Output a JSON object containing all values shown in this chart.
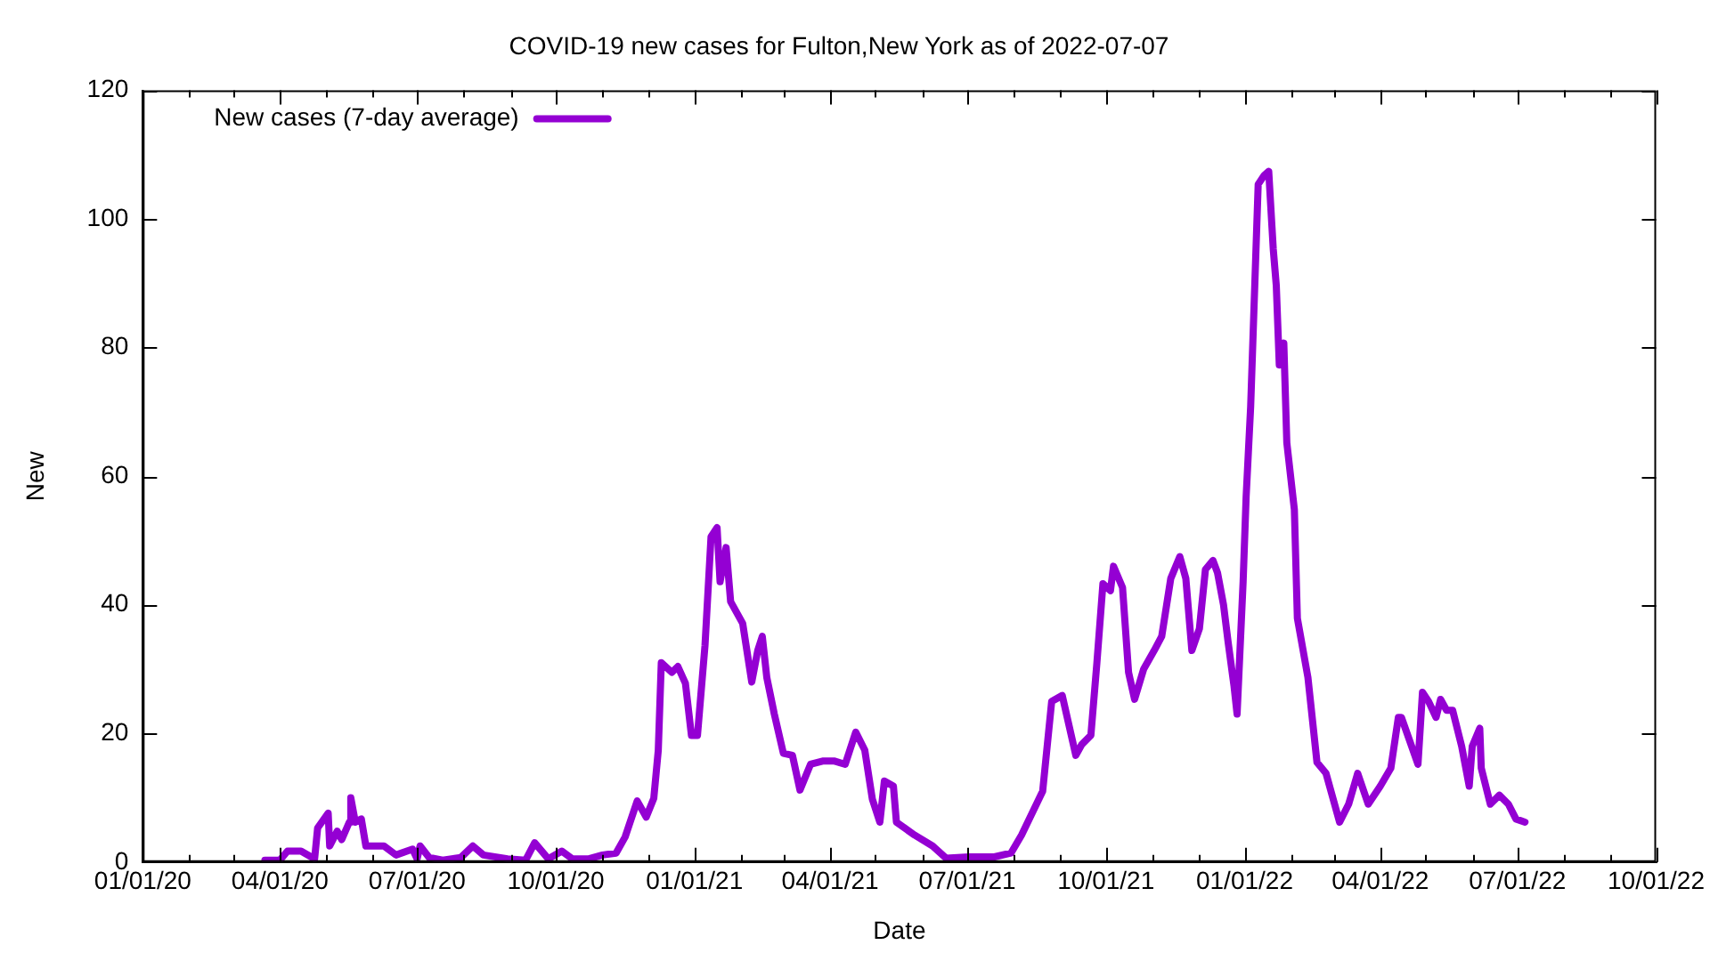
{
  "chart_data": {
    "type": "line",
    "title": "COVID-19 new cases for Fulton,New York as of 2022-07-07",
    "xlabel": "Date",
    "ylabel": "New",
    "x": [
      "2020-03-22",
      "2020-04-01",
      "2020-04-06",
      "2020-04-15",
      "2020-04-24",
      "2020-04-26",
      "2020-05-03",
      "2020-05-04",
      "2020-05-09",
      "2020-05-12",
      "2020-05-17",
      "2020-05-18",
      "2020-05-21",
      "2020-05-25",
      "2020-05-28",
      "2020-06-09",
      "2020-06-17",
      "2020-06-28",
      "2020-07-01",
      "2020-07-03",
      "2020-07-09",
      "2020-07-18",
      "2020-07-30",
      "2020-08-07",
      "2020-08-14",
      "2020-08-30",
      "2020-09-11",
      "2020-09-17",
      "2020-09-26",
      "2020-10-05",
      "2020-10-12",
      "2020-10-23",
      "2020-11-01",
      "2020-11-10",
      "2020-11-16",
      "2020-11-24",
      "2020-11-30",
      "2020-12-05",
      "2020-12-08",
      "2020-12-10",
      "2020-12-17",
      "2020-12-21",
      "2020-12-26",
      "2020-12-30",
      "2021-01-03",
      "2021-01-08",
      "2021-01-12",
      "2021-01-16",
      "2021-01-18",
      "2021-01-22",
      "2021-01-25",
      "2021-02-02",
      "2021-02-08",
      "2021-02-12",
      "2021-02-15",
      "2021-02-18",
      "2021-02-23",
      "2021-03-01",
      "2021-03-07",
      "2021-03-12",
      "2021-03-19",
      "2021-03-27",
      "2021-04-04",
      "2021-04-11",
      "2021-04-18",
      "2021-04-24",
      "2021-04-29",
      "2021-05-04",
      "2021-05-07",
      "2021-05-13",
      "2021-05-15",
      "2021-05-27",
      "2021-06-08",
      "2021-06-17",
      "2021-07-02",
      "2021-07-19",
      "2021-07-30",
      "2021-08-06",
      "2021-08-20",
      "2021-08-26",
      "2021-09-02",
      "2021-09-11",
      "2021-09-15",
      "2021-09-21",
      "2021-09-25",
      "2021-09-29",
      "2021-10-04",
      "2021-10-06",
      "2021-10-12",
      "2021-10-16",
      "2021-10-20",
      "2021-10-26",
      "2021-11-02",
      "2021-11-07",
      "2021-11-13",
      "2021-11-19",
      "2021-11-23",
      "2021-11-27",
      "2021-12-02",
      "2021-12-06",
      "2021-12-11",
      "2021-12-14",
      "2021-12-18",
      "2021-12-21",
      "2021-12-25",
      "2021-12-27",
      "2021-12-31",
      "2022-01-02",
      "2022-01-05",
      "2022-01-10",
      "2022-01-14",
      "2022-01-17",
      "2022-01-20",
      "2022-01-22",
      "2022-01-24",
      "2022-01-27",
      "2022-01-29",
      "2022-02-03",
      "2022-02-05",
      "2022-02-12",
      "2022-02-18",
      "2022-02-24",
      "2022-03-05",
      "2022-03-11",
      "2022-03-17",
      "2022-03-24",
      "2022-04-01",
      "2022-04-08",
      "2022-04-13",
      "2022-04-15",
      "2022-04-26",
      "2022-04-29",
      "2022-05-03",
      "2022-05-08",
      "2022-05-11",
      "2022-05-15",
      "2022-05-19",
      "2022-05-25",
      "2022-05-30",
      "2022-06-01",
      "2022-06-06",
      "2022-06-07",
      "2022-06-13",
      "2022-06-19",
      "2022-06-25",
      "2022-06-30",
      "2022-07-06"
    ],
    "series": [
      {
        "name": "New cases (7-day average)",
        "color": "#9400d3",
        "values": [
          0.3,
          0.3,
          1.7,
          1.7,
          0.5,
          5.3,
          7.6,
          2.5,
          4.8,
          3.5,
          6.2,
          10,
          6.2,
          6.7,
          2.5,
          2.5,
          1.1,
          2,
          0.5,
          2.5,
          0.7,
          0.3,
          0.7,
          2.5,
          1.1,
          0.5,
          0.3,
          3,
          0.5,
          1.7,
          0.5,
          0.5,
          1.1,
          1.4,
          3.9,
          9.5,
          7,
          9.9,
          17.4,
          31,
          29.5,
          30.4,
          27.8,
          19.7,
          19.7,
          33.7,
          50.6,
          52,
          43.6,
          48.9,
          40.5,
          37.1,
          28,
          32.9,
          35.1,
          28.7,
          23,
          16.9,
          16.6,
          11.2,
          15.2,
          15.7,
          15.7,
          15.2,
          20.2,
          17.4,
          9.8,
          6.2,
          12.6,
          11.8,
          6.2,
          4.2,
          2.5,
          0.6,
          0.8,
          0.8,
          1.4,
          4.2,
          11,
          25,
          25.9,
          16.6,
          18.3,
          19.7,
          31,
          43.3,
          42.2,
          46,
          42.7,
          29.5,
          25.3,
          30,
          32.9,
          35.1,
          44.1,
          47.5,
          44.1,
          32.9,
          36.3,
          45.5,
          46.9,
          45,
          40,
          34.3,
          27.3,
          23,
          43.6,
          56.8,
          70.8,
          105.4,
          106.8,
          107.4,
          95.3,
          89.7,
          77.3,
          80.7,
          65.2,
          54.8,
          37.9,
          28.7,
          15.5,
          13.8,
          6.2,
          9,
          13.8,
          9,
          11.8,
          14.6,
          22.5,
          22.5,
          15.2,
          26.4,
          25,
          22.5,
          25.3,
          23.6,
          23.6,
          18,
          11.8,
          18,
          20.8,
          14.6,
          9,
          10.4,
          9,
          6.7,
          6.2
        ]
      }
    ],
    "xlim": [
      "2020-01-01",
      "2022-10-01"
    ],
    "xticks": [
      {
        "value": "2020-01-01",
        "label": "01/01/20"
      },
      {
        "value": "2020-02-01",
        "label": null
      },
      {
        "value": "2020-03-01",
        "label": null
      },
      {
        "value": "2020-04-01",
        "label": "04/01/20"
      },
      {
        "value": "2020-05-01",
        "label": null
      },
      {
        "value": "2020-06-01",
        "label": null
      },
      {
        "value": "2020-07-01",
        "label": "07/01/20"
      },
      {
        "value": "2020-08-01",
        "label": null
      },
      {
        "value": "2020-09-01",
        "label": null
      },
      {
        "value": "2020-10-01",
        "label": "10/01/20"
      },
      {
        "value": "2020-11-01",
        "label": null
      },
      {
        "value": "2020-12-01",
        "label": null
      },
      {
        "value": "2021-01-01",
        "label": "01/01/21"
      },
      {
        "value": "2021-02-01",
        "label": null
      },
      {
        "value": "2021-03-01",
        "label": null
      },
      {
        "value": "2021-04-01",
        "label": "04/01/21"
      },
      {
        "value": "2021-05-01",
        "label": null
      },
      {
        "value": "2021-06-01",
        "label": null
      },
      {
        "value": "2021-07-01",
        "label": "07/01/21"
      },
      {
        "value": "2021-08-01",
        "label": null
      },
      {
        "value": "2021-09-01",
        "label": null
      },
      {
        "value": "2021-10-01",
        "label": "10/01/21"
      },
      {
        "value": "2021-11-01",
        "label": null
      },
      {
        "value": "2021-12-01",
        "label": null
      },
      {
        "value": "2022-01-01",
        "label": "01/01/22"
      },
      {
        "value": "2022-02-01",
        "label": null
      },
      {
        "value": "2022-03-01",
        "label": null
      },
      {
        "value": "2022-04-01",
        "label": "04/01/22"
      },
      {
        "value": "2022-05-01",
        "label": null
      },
      {
        "value": "2022-06-01",
        "label": null
      },
      {
        "value": "2022-07-01",
        "label": "07/01/22"
      },
      {
        "value": "2022-08-01",
        "label": null
      },
      {
        "value": "2022-09-01",
        "label": null
      },
      {
        "value": "2022-10-01",
        "label": "10/01/22"
      }
    ],
    "ylim": [
      0,
      120
    ],
    "yticks": [
      0,
      20,
      40,
      60,
      80,
      100,
      120
    ],
    "grid": false,
    "legend": "top left",
    "marker": "none",
    "line_style": "solid"
  }
}
